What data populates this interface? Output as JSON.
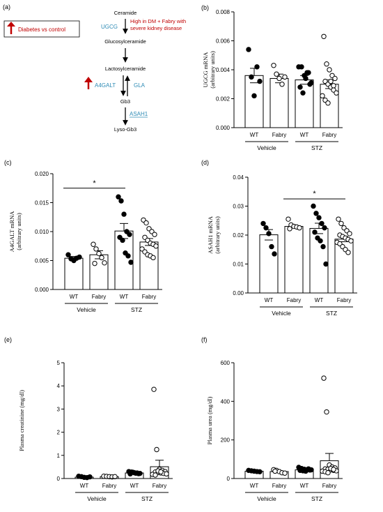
{
  "panel_a": {
    "letter": "(a)",
    "legend_label": "Diabetes vs control",
    "pathway": {
      "ceramide": "Ceramide",
      "ugcg": "UGCG",
      "ugcg_note_line1": "High in DM + Fabry with",
      "ugcg_note_line2": "severe kidney disease",
      "glucosylceramide": "Glucosylceramide",
      "lactosylceramide": "Lactosylceramide",
      "a4galt": "A4GALT",
      "gla": "GLA",
      "gb3": "Gb3",
      "asah1": "ASAH1",
      "lyso_gb3": "Lyso-Gb3"
    }
  },
  "colors": {
    "red_arrow": "#c00000",
    "note_red": "#c00000",
    "enzyme_blue": "#2e8bb5",
    "bar_fill": "#ffffff",
    "filled_point": "#000000"
  },
  "chart_data": [
    {
      "panel": "(b)",
      "type": "bar",
      "ylabel_line1": "UGCG mRNA",
      "ylabel_line2": "(arbitrary units)",
      "ylim": [
        0,
        0.008
      ],
      "yticks": [
        "0.000",
        "0.002",
        "0.004",
        "0.006",
        "0.008"
      ],
      "categories": [
        "WT",
        "Fabry",
        "WT",
        "Fabry"
      ],
      "groups": [
        "Vehicle",
        "STZ"
      ],
      "means": [
        0.0036,
        0.0034,
        0.0033,
        0.003
      ],
      "sem": [
        0.0005,
        0.0003,
        0.0003,
        0.0003
      ],
      "points": [
        [
          0.0054,
          0.0035,
          0.0022,
          0.0042,
          0.0032
        ],
        [
          0.0043,
          0.0037,
          0.0034,
          0.003,
          0.0035
        ],
        [
          0.0042,
          0.0042,
          0.0036,
          0.0038,
          0.003,
          0.0028,
          0.0024,
          0.0034,
          0.0038,
          0.0031
        ],
        [
          0.0063,
          0.0044,
          0.004,
          0.0036,
          0.0034,
          0.0032,
          0.003,
          0.0028,
          0.0026,
          0.0024,
          0.0022,
          0.0019,
          0.0017,
          0.0032,
          0.0029
        ]
      ],
      "filled": [
        true,
        false,
        true,
        false
      ],
      "significance": null
    },
    {
      "panel": "(c)",
      "type": "bar",
      "ylabel_line1": "A4GALT mRNA",
      "ylabel_line2": "(arbitrary units)",
      "ylim": [
        0,
        0.02
      ],
      "yticks": [
        "0.000",
        "0.005",
        "0.010",
        "0.015",
        "0.020"
      ],
      "categories": [
        "WT",
        "Fabry",
        "WT",
        "Fabry"
      ],
      "groups": [
        "Vehicle",
        "STZ"
      ],
      "means": [
        0.0054,
        0.006,
        0.0101,
        0.0082
      ],
      "sem": [
        0.0003,
        0.0007,
        0.0013,
        0.0006
      ],
      "points": [
        [
          0.006,
          0.0053,
          0.005,
          0.0054,
          0.0056
        ],
        [
          0.0078,
          0.007,
          0.0062,
          0.0055,
          0.0046,
          0.0045
        ],
        [
          0.016,
          0.0153,
          0.013,
          0.01,
          0.0095,
          0.009,
          0.0085,
          0.0063,
          0.0058,
          0.0047
        ],
        [
          0.012,
          0.0115,
          0.0105,
          0.01,
          0.0095,
          0.009,
          0.0085,
          0.008,
          0.0078,
          0.0075,
          0.007,
          0.0065,
          0.006,
          0.0058,
          0.0055
        ]
      ],
      "filled": [
        true,
        false,
        true,
        false
      ],
      "significance": {
        "from": 0,
        "to": 2,
        "label": "*",
        "y": 0.0175
      }
    },
    {
      "panel": "(d)",
      "type": "bar",
      "ylabel_line1": "ASAH1 mRNA",
      "ylabel_line2": "(arbitrary units)",
      "ylim": [
        0,
        0.04
      ],
      "yticks": [
        "0.00",
        "0.01",
        "0.02",
        "0.03",
        "0.04"
      ],
      "categories": [
        "WT",
        "Fabry",
        "WT",
        "Fabry"
      ],
      "groups": [
        "Vehicle",
        "STZ"
      ],
      "means": [
        0.0201,
        0.023,
        0.0223,
        0.0186
      ],
      "sem": [
        0.0018,
        0.0005,
        0.0018,
        0.0009
      ],
      "points": [
        [
          0.024,
          0.0225,
          0.0205,
          0.016,
          0.0135
        ],
        [
          0.0255,
          0.0235,
          0.023,
          0.0228,
          0.0225,
          0.0222
        ],
        [
          0.03,
          0.0275,
          0.026,
          0.024,
          0.0225,
          0.021,
          0.019,
          0.018,
          0.016,
          0.01
        ],
        [
          0.0255,
          0.024,
          0.0225,
          0.0215,
          0.0205,
          0.02,
          0.0195,
          0.019,
          0.0185,
          0.018,
          0.0175,
          0.017,
          0.016,
          0.015,
          0.014
        ]
      ],
      "filled": [
        true,
        false,
        true,
        false
      ],
      "significance": {
        "from": 1,
        "to": 3,
        "label": "*",
        "y": 0.0325
      }
    },
    {
      "panel": "(e)",
      "type": "bar",
      "ylabel_line1": "Plasma creatinine (mg/dl)",
      "ylabel_line2": "",
      "ylim": [
        0,
        5
      ],
      "yticks": [
        "0",
        "1",
        "2",
        "3",
        "4",
        "5"
      ],
      "categories": [
        "WT",
        "Fabry",
        "WT",
        "Fabry"
      ],
      "groups": [
        "Vehicle",
        "STZ"
      ],
      "means": [
        0.06,
        0.08,
        0.24,
        0.51
      ],
      "sem": [
        0.02,
        0.02,
        0.02,
        0.28
      ],
      "points": [
        [
          0.1,
          0.08,
          0.05,
          0.04,
          0.07
        ],
        [
          0.1,
          0.09,
          0.08,
          0.07,
          0.08
        ],
        [
          0.3,
          0.28,
          0.25,
          0.24,
          0.22,
          0.2,
          0.27,
          0.23,
          0.21
        ],
        [
          3.85,
          1.25,
          0.4,
          0.35,
          0.3,
          0.28,
          0.26,
          0.24,
          0.22,
          0.2,
          0.18,
          0.15,
          0.33,
          0.29
        ]
      ],
      "filled": [
        true,
        false,
        true,
        false
      ],
      "significance": null
    },
    {
      "panel": "(f)",
      "type": "bar",
      "ylabel_line1": "Plasma urea (mg/dl)",
      "ylabel_line2": "",
      "ylim": [
        0,
        600
      ],
      "yticks": [
        "0",
        "200",
        "400",
        "600"
      ],
      "categories": [
        "WT",
        "Fabry",
        "WT",
        "Fabry"
      ],
      "groups": [
        "Vehicle",
        "STZ"
      ],
      "means": [
        38,
        36,
        45,
        92
      ],
      "sem": [
        2,
        3,
        4,
        38
      ],
      "points": [
        [
          42,
          40,
          38,
          36,
          35
        ],
        [
          46,
          42,
          36,
          30,
          28,
          38
        ],
        [
          58,
          52,
          48,
          46,
          44,
          42,
          40,
          38,
          50,
          45
        ],
        [
          520,
          345,
          70,
          60,
          55,
          50,
          48,
          45,
          42,
          40,
          38,
          35,
          30,
          52,
          47
        ]
      ],
      "filled": [
        true,
        false,
        true,
        false
      ],
      "significance": null
    }
  ]
}
